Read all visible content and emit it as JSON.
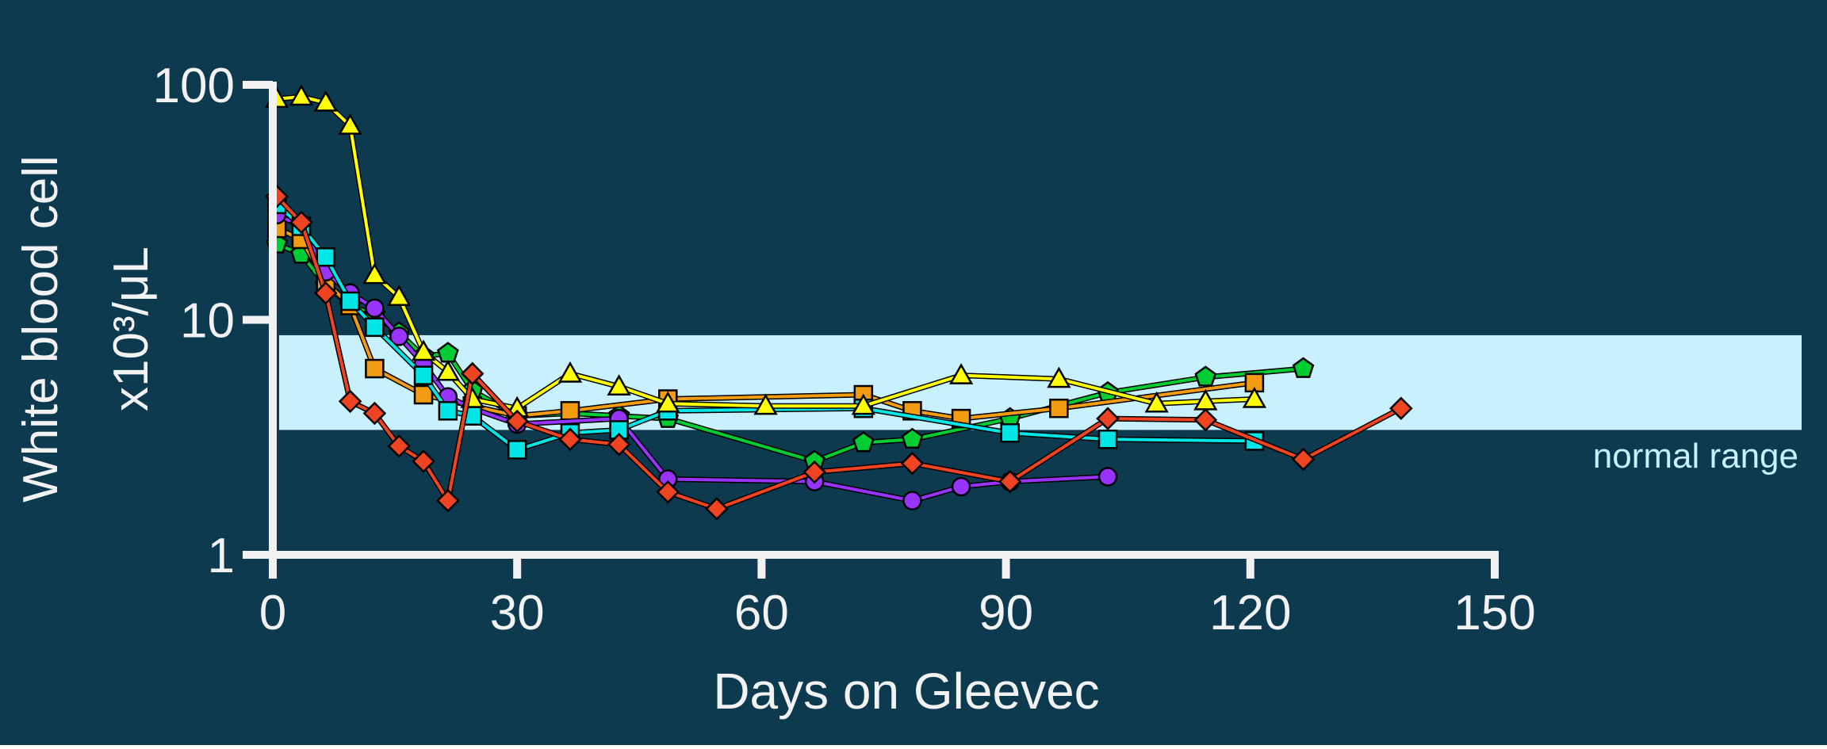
{
  "background": "#0d3a4f",
  "chart_data": {
    "type": "line",
    "xlabel": "Days on Gleevec",
    "ylabel_line1": "White blood cell",
    "ylabel_line2": "x10³/μL",
    "xlim": [
      0,
      150
    ],
    "ylim": [
      1,
      100
    ],
    "yscale": "log",
    "x_ticks": [
      0,
      30,
      60,
      90,
      120,
      150
    ],
    "y_ticks": [
      1,
      10,
      100
    ],
    "grid": false,
    "legend": "none",
    "normal_range": {
      "label": "normal range",
      "low": 3.4,
      "high": 8.6
    },
    "axis_color": "#f2f2f2",
    "band_color": "#c8f0ff",
    "band_label_color": "#c8f0ff",
    "series": [
      {
        "color": "#00cc33",
        "marker": "pentagon",
        "points": [
          [
            0.5,
            21
          ],
          [
            3.5,
            19
          ],
          [
            6.5,
            14
          ],
          [
            9.5,
            11.5
          ],
          [
            12.5,
            10.5
          ],
          [
            15.5,
            8.8
          ],
          [
            18.5,
            7
          ],
          [
            21.5,
            7.2
          ],
          [
            24.5,
            5
          ],
          [
            30,
            3.9
          ],
          [
            36.5,
            4
          ],
          [
            42.5,
            3.9
          ],
          [
            48.5,
            3.8
          ],
          [
            66.5,
            2.5
          ],
          [
            72.5,
            3
          ],
          [
            78.5,
            3.1
          ],
          [
            90.5,
            3.8
          ],
          [
            102.5,
            4.9
          ],
          [
            114.5,
            5.7
          ],
          [
            126.5,
            6.2
          ]
        ]
      },
      {
        "color": "#f39c12",
        "marker": "square",
        "points": [
          [
            0.5,
            24.5
          ],
          [
            3.5,
            22
          ],
          [
            6.5,
            14.5
          ],
          [
            9.5,
            11.5
          ],
          [
            12.5,
            6.2
          ],
          [
            18.5,
            4.8
          ],
          [
            24.5,
            4.3
          ],
          [
            30,
            3.9
          ],
          [
            36.5,
            4.1
          ],
          [
            48.5,
            4.6
          ],
          [
            72.5,
            4.8
          ],
          [
            78.5,
            4.1
          ],
          [
            84.5,
            3.8
          ],
          [
            96.5,
            4.2
          ],
          [
            120.5,
            5.4
          ]
        ]
      },
      {
        "color": "#9933ff",
        "marker": "circle",
        "points": [
          [
            0.5,
            28
          ],
          [
            3.5,
            25
          ],
          [
            6.5,
            16
          ],
          [
            9.5,
            13
          ],
          [
            12.5,
            11.2
          ],
          [
            15.5,
            8.5
          ],
          [
            18.5,
            6.5
          ],
          [
            21.5,
            4.7
          ],
          [
            24.5,
            4.2
          ],
          [
            30,
            3.6
          ],
          [
            42.5,
            3.8
          ],
          [
            48.5,
            2.1
          ],
          [
            66.5,
            2.05
          ],
          [
            78.5,
            1.7
          ],
          [
            84.5,
            1.95
          ],
          [
            90.5,
            2.05
          ],
          [
            102.5,
            2.15
          ]
        ]
      },
      {
        "color": "#00e5e5",
        "marker": "square",
        "points": [
          [
            0.5,
            31
          ],
          [
            3.5,
            25
          ],
          [
            6.5,
            18.5
          ],
          [
            9.5,
            12
          ],
          [
            12.5,
            9.3
          ],
          [
            18.5,
            5.8
          ],
          [
            21.5,
            4.1
          ],
          [
            24.5,
            3.9
          ],
          [
            30,
            2.8
          ],
          [
            36.5,
            3.3
          ],
          [
            42.5,
            3.4
          ],
          [
            48.5,
            4.1
          ],
          [
            72.5,
            4.2
          ],
          [
            90.5,
            3.3
          ],
          [
            102.5,
            3.1
          ],
          [
            120.5,
            3.05
          ]
        ]
      },
      {
        "color": "#ffff00",
        "marker": "triangle",
        "points": [
          [
            0.5,
            87
          ],
          [
            3.5,
            89
          ],
          [
            6.5,
            84
          ],
          [
            9.5,
            67
          ],
          [
            12.5,
            15.5
          ],
          [
            15.5,
            12.5
          ],
          [
            18.5,
            7.3
          ],
          [
            21.5,
            6
          ],
          [
            24.5,
            4.6
          ],
          [
            30,
            4.2
          ],
          [
            36.5,
            5.9
          ],
          [
            42.5,
            5.2
          ],
          [
            48.5,
            4.4
          ],
          [
            60.5,
            4.3
          ],
          [
            72.5,
            4.3
          ],
          [
            84.5,
            5.8
          ],
          [
            96.5,
            5.6
          ],
          [
            108.5,
            4.4
          ],
          [
            114.5,
            4.5
          ],
          [
            120.5,
            4.6
          ]
        ]
      },
      {
        "color": "#ee4422",
        "marker": "diamond",
        "points": [
          [
            0.5,
            33.5
          ],
          [
            3.5,
            26
          ],
          [
            6.5,
            13
          ],
          [
            9.5,
            4.5
          ],
          [
            12.5,
            4.0
          ],
          [
            15.5,
            2.9
          ],
          [
            18.5,
            2.5
          ],
          [
            21.5,
            1.7
          ],
          [
            24.5,
            5.9
          ],
          [
            30,
            3.7
          ],
          [
            36.5,
            3.1
          ],
          [
            42.5,
            2.95
          ],
          [
            48.5,
            1.85
          ],
          [
            54.5,
            1.57
          ],
          [
            66.5,
            2.25
          ],
          [
            78.5,
            2.45
          ],
          [
            90.5,
            2.05
          ],
          [
            102.5,
            3.8
          ],
          [
            114.5,
            3.75
          ],
          [
            126.5,
            2.55
          ],
          [
            138.5,
            4.2
          ]
        ]
      }
    ]
  }
}
